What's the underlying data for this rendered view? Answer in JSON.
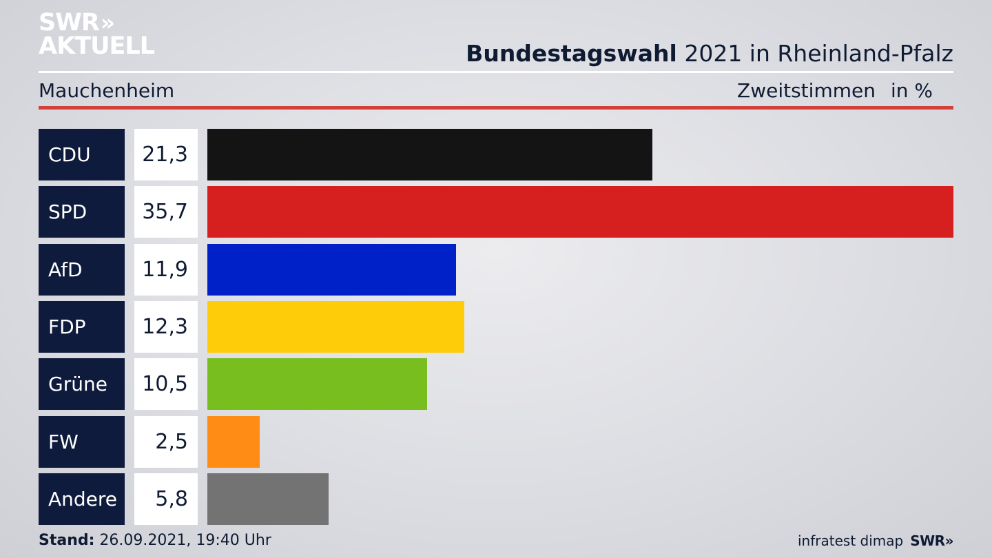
{
  "logo": {
    "line1": "SWR",
    "line2": "AKTUELL",
    "chevrons": "»"
  },
  "header": {
    "title_bold": "Bundestagswahl",
    "title_rest": "2021 in Rheinland-Pfalz",
    "region": "Mauchenheim",
    "vote_type": "Zweitstimmen",
    "unit": "in %"
  },
  "chart_data": {
    "type": "bar",
    "orientation": "horizontal",
    "categories": [
      "CDU",
      "SPD",
      "AfD",
      "FDP",
      "Grüne",
      "FW",
      "Andere"
    ],
    "values": [
      21.3,
      35.7,
      11.9,
      12.3,
      10.5,
      2.5,
      5.8
    ],
    "value_labels": [
      "21,3",
      "35,7",
      "11,9",
      "12,3",
      "10,5",
      "2,5",
      "5,8"
    ],
    "colors": [
      "#141414",
      "#d62020",
      "#0020c8",
      "#ffcc0a",
      "#78be1e",
      "#ff8c14",
      "#737373"
    ],
    "title": "Bundestagswahl 2021 in Rheinland-Pfalz",
    "xlabel": "",
    "ylabel": "",
    "xlim": [
      0,
      35.7
    ],
    "grid": false
  },
  "footer": {
    "stand_label": "Stand:",
    "stand_value": "26.09.2021, 19:40 Uhr",
    "source": "infratest dimap",
    "swr": "SWR»"
  }
}
